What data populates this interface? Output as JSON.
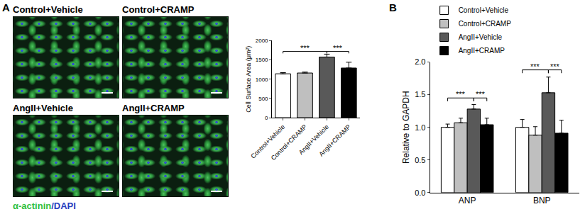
{
  "panel_labels": [
    "A",
    "B"
  ],
  "images": {
    "titles": [
      "Control+Vehicle",
      "Control+CRAMP",
      "AngII+Vehicle",
      "AngII+CRAMP"
    ],
    "stain": [
      {
        "text": "α-actinin",
        "color": "#2fbf3f"
      },
      {
        "text": "/DAPI",
        "color": "#2a3fbf"
      }
    ]
  },
  "chart_data": [
    {
      "type": "bar",
      "y_label": "Cell Surface Area (μm²)",
      "categories": [
        "Control+Vehicle",
        "Control+CRAMP",
        "AngII+Vehicle",
        "AngII+CRAMP"
      ],
      "values": [
        1140,
        1160,
        1575,
        1290
      ],
      "errors": [
        30,
        25,
        75,
        150
      ],
      "colors": [
        "#ffffff",
        "#bfbfbf",
        "#595959",
        "#000000"
      ],
      "ylim": [
        0,
        2000
      ],
      "yticks": [
        0,
        500,
        1000,
        1500,
        2000
      ],
      "grid": false,
      "significance": [
        {
          "from": 0,
          "to": 2,
          "y": 1720,
          "label": "***"
        },
        {
          "from": 2,
          "to": 3,
          "y": 1720,
          "label": "***"
        }
      ]
    },
    {
      "type": "bar",
      "y_label": "Relative to GAPDH",
      "categories": [
        "ANP",
        "BNP"
      ],
      "series": [
        {
          "name": "Control+Vehicle",
          "color": "#ffffff",
          "values": [
            1.0,
            1.0
          ],
          "errors": [
            0.05,
            0.12
          ]
        },
        {
          "name": "Control+CRAMP",
          "color": "#bfbfbf",
          "values": [
            1.07,
            0.88
          ],
          "errors": [
            0.07,
            0.13
          ]
        },
        {
          "name": "AngII+Vehicle",
          "color": "#595959",
          "values": [
            1.28,
            1.53
          ],
          "errors": [
            0.07,
            0.24
          ]
        },
        {
          "name": "AngII+CRAMP",
          "color": "#000000",
          "values": [
            1.04,
            0.91
          ],
          "errors": [
            0.1,
            0.2
          ]
        }
      ],
      "ylim": [
        0,
        2.0
      ],
      "yticks": [
        {
          "value": 0,
          "label": "0.0"
        },
        0.5,
        {
          "value": 1,
          "label": "1.0"
        },
        1.5,
        {
          "value": 2,
          "label": "2.0"
        }
      ],
      "legend": "top-left",
      "grid": false,
      "significance": [
        {
          "category": 0,
          "from": 0,
          "to": 2,
          "y": 1.45,
          "label": "***"
        },
        {
          "category": 0,
          "from": 2,
          "to": 3,
          "y": 1.45,
          "label": "***"
        },
        {
          "category": 1,
          "from": 0,
          "to": 2,
          "y": 1.88,
          "label": "***"
        },
        {
          "category": 1,
          "from": 2,
          "to": 3,
          "y": 1.88,
          "label": "***"
        }
      ]
    }
  ]
}
